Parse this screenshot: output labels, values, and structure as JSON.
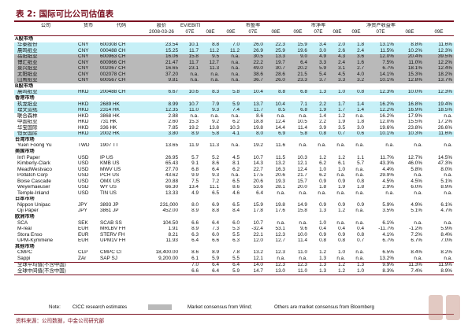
{
  "title": {
    "label": "表 2:",
    "text": "国际可比公司估值表"
  },
  "headers": {
    "row1": [
      "公司",
      "货币",
      "代码",
      "股价",
      "EV/EBITDA",
      "",
      "",
      "市盈率",
      "",
      "",
      "市净率",
      "",
      "",
      "净资产收益率",
      "",
      ""
    ],
    "row2": [
      "",
      "",
      "",
      "2008-03-26",
      "07E",
      "08E",
      "09E",
      "07E",
      "08E",
      "09E",
      "07E",
      "08E",
      "09E",
      "07E",
      "08E",
      "09E"
    ]
  },
  "rows": [
    {
      "type": "sec",
      "name": "A股市场"
    },
    {
      "type": "data",
      "hl": "cyan",
      "name": "华泰股份",
      "cur": "CNY",
      "tk": "600308 CH",
      "px": "23.54",
      "v": [
        "10.1",
        "8.8",
        "7.0",
        "26.0",
        "22.3",
        "15.9",
        "3.4",
        "2.0",
        "1.8",
        "13.1%",
        "8.8%",
        "11.6%"
      ]
    },
    {
      "type": "data",
      "hl": "cyan",
      "name": "晨鸣纸业",
      "cur": "CNY",
      "tk": "000488 CH",
      "px": "15.25",
      "v": [
        "11.7",
        "11.2",
        "11.2",
        "26.9",
        "25.9",
        "19.6",
        "3.0",
        "2.6",
        "2.4",
        "11.5%",
        "10.2%",
        "12.3%"
      ]
    },
    {
      "type": "data",
      "hl": "gray",
      "name": "岳阳纸业",
      "cur": "CNY",
      "tk": "600963 CH",
      "px": "16.06",
      "v": [
        "15.8",
        "9.5",
        "n.a.",
        "30.5",
        "13.3",
        "9.0",
        "4.9",
        "4.3",
        "3.6",
        "12.0%",
        "20.4%",
        "39.5%"
      ]
    },
    {
      "type": "data",
      "hl": "gray",
      "name": "博汇纸业",
      "cur": "CNY",
      "tk": "600966 CH",
      "px": "21.47",
      "v": [
        "11.7",
        "12.7",
        "n.a.",
        "22.2",
        "19.7",
        "6.4",
        "3.3",
        "2.4",
        "1.6",
        "7.5%",
        "11.0%",
        "12.2%"
      ]
    },
    {
      "type": "data",
      "hl": "gray",
      "name": "景兴纸业",
      "cur": "CNY",
      "tk": "002067 CH",
      "px": "16.65",
      "v": [
        "23.1",
        "11.3",
        "n.a.",
        "49.0",
        "30.7",
        "20.2",
        "5.9",
        "3.1",
        "2.7",
        "6.7%",
        "18.1%",
        "12.4%"
      ]
    },
    {
      "type": "data",
      "hl": "gray",
      "name": "太阳纸业",
      "cur": "CNY",
      "tk": "002078 CH",
      "px": "37.20",
      "v": [
        "n.a.",
        "n.a.",
        "n.a.",
        "38.6",
        "28.6",
        "21.5",
        "5.4",
        "4.5",
        "4.0",
        "14.1%",
        "15.3%",
        "18.2%"
      ]
    },
    {
      "type": "data",
      "hl": "gray",
      "name": "山鹰纸业",
      "cur": "CNY",
      "tk": "600567 CH",
      "px": "9.81",
      "v": [
        "n.a.",
        "n.a.",
        "n.a.",
        "36.7",
        "26.0",
        "23.3",
        "3.7",
        "3.3",
        "3.2",
        "10.1%",
        "12.8%",
        "13.7%"
      ]
    },
    {
      "type": "sec",
      "name": "B股市场"
    },
    {
      "type": "data",
      "hl": "cyan",
      "name": "晨鸣纸业",
      "cur": "HKD",
      "tk": "200488 CH",
      "px": "6.67",
      "v": [
        "10.6",
        "8.3",
        "5.8",
        "10.4",
        "8.8",
        "6.8",
        "1.3",
        "1.0",
        "0.8",
        "12.3%",
        "10.0%",
        "12.3%"
      ]
    },
    {
      "type": "sec",
      "name": "香港市场"
    },
    {
      "type": "data",
      "hl": "cyan",
      "name": "玖龙纸业",
      "cur": "HKD",
      "tk": "2689 HK",
      "px": "8.99",
      "v": [
        "10.7",
        "7.9",
        "5.9",
        "13.7",
        "10.4",
        "7.1",
        "2.2",
        "1.7",
        "1.4",
        "16.2%",
        "16.8%",
        "19.4%"
      ]
    },
    {
      "type": "data",
      "hl": "cyan",
      "name": "理文造纸",
      "cur": "HKD",
      "tk": "2314 HK",
      "px": "12.35",
      "v": [
        "11.0",
        "9.3",
        "7.4",
        "11.7",
        "8.5",
        "6.8",
        "1.9",
        "1.7",
        "1.4",
        "12.2%",
        "16.9%",
        "18.5%"
      ]
    },
    {
      "type": "data",
      "hl": "",
      "name": "联合森林",
      "cur": "HKD",
      "tk": "3868 HK",
      "px": "2.88",
      "v": [
        "n.a.",
        "n.a.",
        "n.a.",
        "8.6",
        "n.a.",
        "n.a.",
        "1.4",
        "1.2",
        "n.a.",
        "16.2%",
        "17.9%",
        "n.a."
      ]
    },
    {
      "type": "data",
      "hl": "",
      "name": "中国纸业",
      "cur": "HKD",
      "tk": "731 HK",
      "px": "2.60",
      "v": [
        "15.3",
        "9.2",
        "6.2",
        "18.8",
        "12.4",
        "10.5",
        "2.2",
        "1.9",
        "1.8",
        "12.0%",
        "15.5%",
        "17.2%"
      ]
    },
    {
      "type": "data",
      "hl": "",
      "name": "华宝国际",
      "cur": "HKD",
      "tk": "336 HK",
      "px": "7.85",
      "v": [
        "19.2",
        "13.8",
        "10.3",
        "19.8",
        "14.4",
        "11.4",
        "3.9",
        "3.5",
        "3.0",
        "19.6%",
        "23.8%",
        "26.6%"
      ]
    },
    {
      "type": "data",
      "hl": "cyan",
      "name": "恒安国际",
      "cur": "HKD",
      "tk": "2002 HK",
      "px": "3.80",
      "v": [
        "8.9",
        "5.8",
        "4.1",
        "8.0",
        "6.9",
        "5.8",
        "0.8",
        "0.7",
        "0.6",
        "10.1%",
        "10.3%",
        "11.6%"
      ]
    },
    {
      "type": "sec",
      "name": "台湾市场"
    },
    {
      "type": "data",
      "hl": "",
      "name": "Yuen Foong Yu",
      "cur": "TWD",
      "tk": "1907 TT",
      "px": "13.65",
      "v": [
        "11.9",
        "11.3",
        "n.a.",
        "19.2",
        "11.6",
        "n.a.",
        "n.a.",
        "n.a.",
        "n.a.",
        "n.a.",
        "n.a.",
        "n.a."
      ]
    },
    {
      "type": "sec",
      "name": "美国市场"
    },
    {
      "type": "data",
      "hl": "",
      "name": "Int'l Paper",
      "cur": "USD",
      "tk": "IP US",
      "px": "26.95",
      "v": [
        "5.7",
        "5.2",
        "4.5",
        "10.7",
        "11.5",
        "10.3",
        "1.2",
        "1.2",
        "1.1",
        "11.7%",
        "12.7%",
        "14.5%"
      ]
    },
    {
      "type": "data",
      "hl": "",
      "name": "Kimberly-Clark",
      "cur": "USD",
      "tk": "KMB US",
      "px": "65.43",
      "v": [
        "9.1",
        "8.6",
        "8.1",
        "14.3",
        "13.2",
        "12.1",
        "6.2",
        "6.1",
        "5.7",
        "43.3%",
        "46.0%",
        "47.3%"
      ]
    },
    {
      "type": "data",
      "hl": "",
      "name": "MeadWestvaco",
      "cur": "USD",
      "tk": "MWV US",
      "px": "27.70",
      "v": [
        "6.8",
        "6.4",
        "6.2",
        "22.7",
        "16.3",
        "12.4",
        "1.0",
        "1.0",
        "n.a.",
        "4.4%",
        "5.8%",
        "8.0%"
      ]
    },
    {
      "type": "data",
      "hl": "",
      "name": "Potlatch Corp",
      "cur": "USD",
      "tk": "PCH US",
      "px": "43.62",
      "v": [
        "9.9",
        "9.3",
        "n.a.",
        "17.5",
        "20.6",
        "21.7",
        "6.2",
        "n.a.",
        "n.a.",
        "29.9%",
        "n.a.",
        "n.a."
      ]
    },
    {
      "type": "data",
      "hl": "",
      "name": "Boise Cascade",
      "cur": "USD",
      "tk": "OMX US",
      "px": "20.88",
      "v": [
        "7.5",
        "7.2",
        "6.5",
        "20.6",
        "19.3",
        "15.7",
        "0.9",
        "0.9",
        "0.8",
        "4.5%",
        "4.5%",
        "5.1%"
      ]
    },
    {
      "type": "data",
      "hl": "",
      "name": "Weyerhaeuser",
      "cur": "USD",
      "tk": "WY US",
      "px": "66.30",
      "v": [
        "13.4",
        "11.1",
        "8.6",
        "53.6",
        "28.1",
        "20.0",
        "1.8",
        "1.9",
        "1.8",
        "2.9%",
        "6.0%",
        "8.9%"
      ]
    },
    {
      "type": "data",
      "hl": "",
      "name": "Temple-Inland",
      "cur": "USD",
      "tk": "TIN US",
      "px": "13.33",
      "v": [
        "4.9",
        "6.5",
        "4.6",
        "6.4",
        "n.a.",
        "n.a.",
        "n.a.",
        "n.a.",
        "n.a.",
        "n.a.",
        "n.a.",
        "n.a."
      ]
    },
    {
      "type": "sec",
      "name": "日本市场"
    },
    {
      "type": "data",
      "hl": "",
      "name": "Nippon Unipac",
      "cur": "JPY",
      "tk": "3893 JP",
      "px": "231,000",
      "v": [
        "8.0",
        "6.9",
        "6.5",
        "15.9",
        "19.8",
        "14.9",
        "0.9",
        "0.9",
        "0.9",
        "5.9%",
        "4.9%",
        "6.1%"
      ]
    },
    {
      "type": "data",
      "hl": "",
      "name": "Oji Paper",
      "cur": "JPY",
      "tk": "3861 JP",
      "px": "452.00",
      "v": [
        "8.9",
        "8.8",
        "8.4",
        "17.8",
        "17.6",
        "15.8",
        "1.3",
        "1.2",
        "n.a.",
        "3.5%",
        "5.1%",
        "4.7%"
      ]
    },
    {
      "type": "sec",
      "name": "欧洲市场"
    },
    {
      "type": "data",
      "hl": "",
      "name": "SCA",
      "cur": "SEK",
      "tk": "SCAB SS",
      "px": "104.50",
      "v": [
        "6.6",
        "6.4",
        "6.0",
        "10.7",
        "n.a.",
        "n.a.",
        "1.0",
        "n.a.",
        "n.a.",
        "6.1%",
        "n.a.",
        "n.a."
      ]
    },
    {
      "type": "data",
      "hl": "",
      "name": "M-real",
      "cur": "EUR",
      "tk": "MRLBV FH",
      "px": "1.91",
      "v": [
        "8.9",
        "7.3",
        "5.3",
        "-32.4",
        "53.1",
        "9.6",
        "0.4",
        "0.4",
        "0.4",
        "-11.7%",
        "-1.2%",
        "5.9%"
      ]
    },
    {
      "type": "data",
      "hl": "",
      "name": "Stora Enso",
      "cur": "EUR",
      "tk": "STERV FH",
      "px": "8.21",
      "v": [
        "6.3",
        "6.0",
        "5.5",
        "22.1",
        "12.3",
        "10.0",
        "0.9",
        "0.9",
        "0.8",
        "4.1%",
        "7.2%",
        "8.4%"
      ]
    },
    {
      "type": "data",
      "hl": "",
      "name": "UPM-Kymmene",
      "cur": "EUR",
      "tk": "UPM1V FH",
      "px": "11.93",
      "v": [
        "6.4",
        "6.6",
        "6.3",
        "12.0",
        "12.7",
        "11.4",
        "0.8",
        "0.8",
        "0.7",
        "6.7%",
        "6.7%",
        "7.0%"
      ]
    },
    {
      "type": "sec",
      "name": "其他市场"
    },
    {
      "type": "data",
      "hl": "",
      "name": "CMPC",
      "cur": "CLP",
      "tk": "CMPC CI",
      "px": "18,400.00",
      "v": [
        "8.6",
        "8.9",
        "7.8",
        "13.2",
        "12.3",
        "11.0",
        "1.2",
        "1.0",
        "n.a.",
        "6.5%",
        "8.4%",
        "8.2%"
      ]
    },
    {
      "type": "data",
      "hl": "",
      "name": "Sappi",
      "cur": "ZAr",
      "tk": "SAP SJ",
      "px": "9,200.00",
      "v": [
        "6.1",
        "5.9",
        "5.5",
        "12.1",
        "n.a.",
        "n.a.",
        "1.3",
        "n.a.",
        "n.a.",
        "13.2%",
        "n.a.",
        "n.a."
      ]
    },
    {
      "type": "avg",
      "hl": "",
      "name": "全球平均值(不含中国)",
      "cur": "",
      "tk": "",
      "px": "",
      "v": [
        "7.0",
        "6.4",
        "6.4",
        "14.0",
        "12.3",
        "12.3",
        "1.3",
        "1.2",
        "1.3",
        "9.9%",
        "11.3%",
        "11.9%"
      ]
    },
    {
      "type": "avg2",
      "hl": "",
      "name": "全球中间值(不含中国)",
      "cur": "",
      "tk": "",
      "px": "",
      "v": [
        "6.6",
        "6.4",
        "5.9",
        "14.7",
        "13.0",
        "11.0",
        "1.3",
        "1.2",
        "1.0",
        "8.3%",
        "7.4%",
        "8.9%"
      ]
    }
  ],
  "notes": {
    "note_label": "Note:",
    "gray_text": "CICC research estimates",
    "cyan_text": "Market consensus from Wind;",
    "other_text": "Others are market consensus from Bloomberg"
  },
  "source": "资料来源：公司数据，中金公司研究部",
  "colors": {
    "accent": "#7a1020",
    "gray": "#b9b9b9",
    "cyan": "#c6f0f7"
  }
}
